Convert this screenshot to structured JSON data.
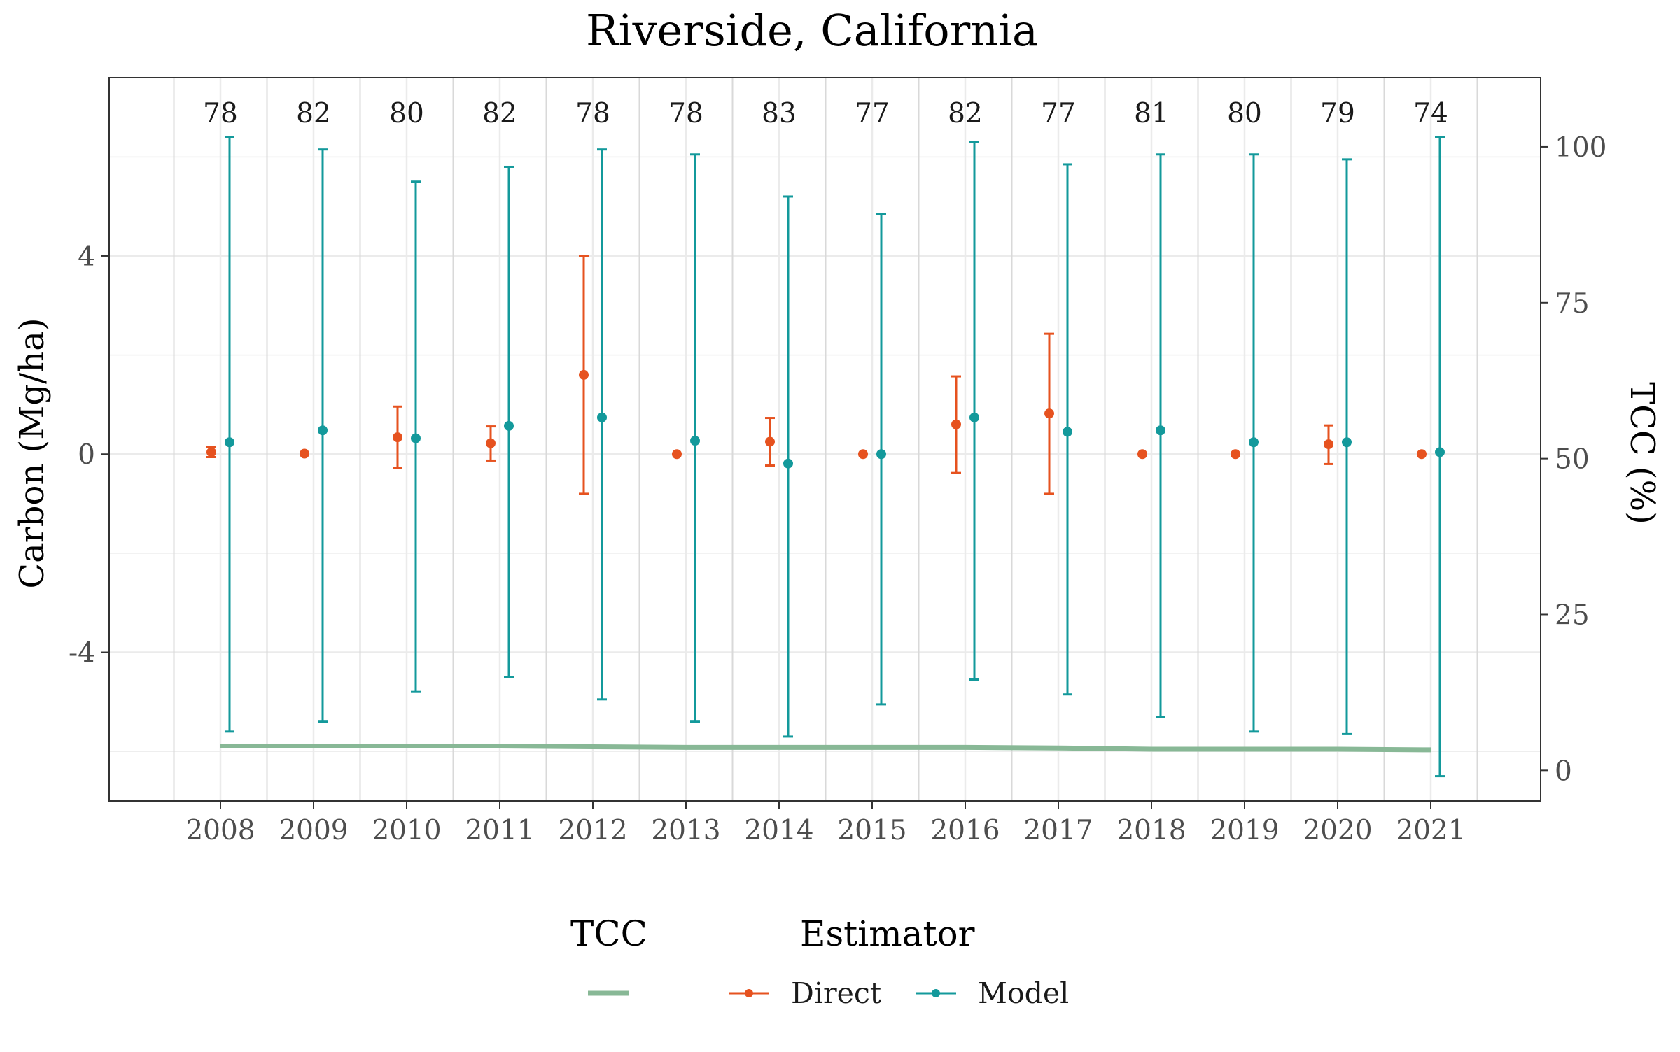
{
  "chart_data": {
    "type": "scatter",
    "title": "Riverside, California",
    "ylabel": "Carbon (Mg/ha)",
    "ylabel_right": "TCC (%)",
    "xlabel": "",
    "categories": [
      "2008",
      "2009",
      "2010",
      "2011",
      "2012",
      "2013",
      "2014",
      "2015",
      "2016",
      "2017",
      "2018",
      "2019",
      "2020",
      "2021"
    ],
    "y_ticks": [
      "-4",
      "0",
      "4"
    ],
    "y_tick_values": [
      -4,
      0,
      4
    ],
    "ylim": [
      -7.0,
      7.6
    ],
    "y2_ticks": [
      "0",
      "25",
      "50",
      "75",
      "100"
    ],
    "y2_tick_values": [
      0,
      25,
      50,
      75,
      100
    ],
    "y2lim": [
      -4.9,
      111.1
    ],
    "grid": true,
    "legend_position": "bottom",
    "counts": [
      "78",
      "82",
      "80",
      "82",
      "78",
      "78",
      "83",
      "77",
      "82",
      "77",
      "81",
      "80",
      "79",
      "74"
    ],
    "series": [
      {
        "name": "Direct",
        "color": "#e6521f",
        "estimate": [
          0.04,
          0.01,
          0.34,
          0.22,
          1.6,
          0.0,
          0.25,
          0.0,
          0.6,
          0.82,
          0.0,
          0.0,
          0.2,
          0.0
        ],
        "lower": [
          -0.06,
          null,
          -0.28,
          -0.13,
          -0.8,
          null,
          -0.23,
          null,
          -0.38,
          -0.8,
          null,
          null,
          -0.2,
          null
        ],
        "upper": [
          0.14,
          null,
          0.96,
          0.56,
          4.0,
          null,
          0.73,
          null,
          1.57,
          2.43,
          null,
          null,
          0.58,
          null
        ]
      },
      {
        "name": "Model",
        "color": "#13999b",
        "estimate": [
          0.24,
          0.48,
          0.32,
          0.57,
          0.74,
          0.27,
          -0.19,
          0.0,
          0.74,
          0.45,
          0.48,
          0.24,
          0.24,
          0.04
        ],
        "lower": [
          -5.6,
          -5.4,
          -4.8,
          -4.5,
          -4.95,
          -5.4,
          -5.7,
          -5.05,
          -4.55,
          -4.85,
          -5.3,
          -5.6,
          -5.65,
          -6.5
        ],
        "upper": [
          6.4,
          6.15,
          5.5,
          5.8,
          6.15,
          6.05,
          5.2,
          4.85,
          6.3,
          5.85,
          6.05,
          6.05,
          5.95,
          6.4
        ]
      }
    ],
    "tcc": {
      "name": "TCC",
      "color": "#88b896",
      "values": [
        3.9,
        3.9,
        3.9,
        3.9,
        3.8,
        3.7,
        3.7,
        3.7,
        3.7,
        3.6,
        3.4,
        3.4,
        3.4,
        3.3
      ]
    },
    "legend": {
      "tcc_title": "TCC",
      "estimator_title": "Estimator",
      "entries": [
        "Direct",
        "Model"
      ]
    }
  }
}
